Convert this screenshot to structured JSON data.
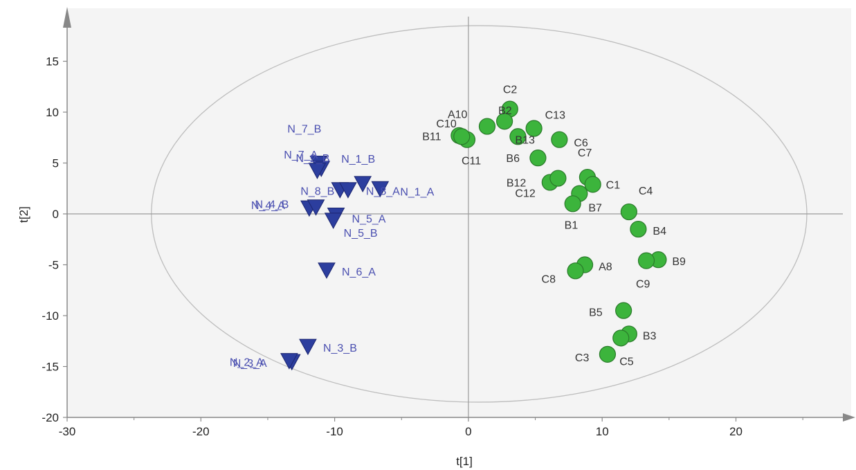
{
  "chart_data": {
    "type": "scatter",
    "title": "",
    "xlabel": "t[1]",
    "ylabel": "t[2]",
    "xlim": [
      -30,
      30
    ],
    "ylim": [
      -20,
      20
    ],
    "xticks": [
      "-30",
      "-20",
      "-10",
      "0",
      "10",
      "20"
    ],
    "yticks": [
      "-20",
      "-15",
      "-10",
      "-5",
      "0",
      "5",
      "10",
      "15"
    ],
    "grid": false,
    "legend": "none",
    "ellipse": {
      "cx": 0.8,
      "cy": 0,
      "rx": 24.5,
      "ry": 18.5
    },
    "colors": {
      "group_n": "#2c3e9e",
      "group_n_label": "#4a4fb0",
      "group_abc": "#3cb43c",
      "group_abc_label": "#333333",
      "plot_bg": "#f4f4f4",
      "ellipse": "#bdbdbd",
      "axis": "#888888"
    },
    "series": [
      {
        "marker": "triangle-down",
        "points": [
          {
            "label": "N_7_B",
            "x": -11.2,
            "y": 5.0
          },
          {
            "label": "N_7_A",
            "x": -11.0,
            "y": 4.5
          },
          {
            "label": "N_2_B",
            "x": -11.3,
            "y": 4.3
          },
          {
            "label": "N_1_B",
            "x": -7.9,
            "y": 3.0
          },
          {
            "label": "N_8_B",
            "x": -9.6,
            "y": 2.4
          },
          {
            "label": "N_8_A",
            "x": -9.0,
            "y": 2.4
          },
          {
            "label": "N_1_A",
            "x": -6.6,
            "y": 2.5
          },
          {
            "label": "N_4_A",
            "x": -11.9,
            "y": 0.6
          },
          {
            "label": "N_4_B",
            "x": -11.4,
            "y": 0.7
          },
          {
            "label": "N_5_A",
            "x": -9.9,
            "y": -0.1
          },
          {
            "label": "N_5_B",
            "x": -10.1,
            "y": -0.6
          },
          {
            "label": "N_6_A",
            "x": -10.6,
            "y": -5.5
          },
          {
            "label": "N_3_B",
            "x": -12.0,
            "y": -13.0
          },
          {
            "label": "N_3_A",
            "x": -13.2,
            "y": -14.5
          },
          {
            "label": "N_2_A",
            "x": -13.4,
            "y": -14.4
          }
        ]
      },
      {
        "marker": "circle",
        "points": [
          {
            "label": "C2",
            "x": 3.1,
            "y": 10.3
          },
          {
            "label": "B2",
            "x": 2.7,
            "y": 9.1
          },
          {
            "label": "A10",
            "x": 1.4,
            "y": 8.6
          },
          {
            "label": "C10",
            "x": -0.7,
            "y": 7.7
          },
          {
            "label": "C11",
            "x": -0.1,
            "y": 7.3
          },
          {
            "label": "B11",
            "x": -0.5,
            "y": 7.6
          },
          {
            "label": "C13",
            "x": 4.9,
            "y": 8.4
          },
          {
            "label": "B13",
            "x": 3.7,
            "y": 7.6
          },
          {
            "label": "C6",
            "x": 6.8,
            "y": 7.3
          },
          {
            "label": "B6",
            "x": 5.2,
            "y": 5.5
          },
          {
            "label": "C7",
            "x": 8.9,
            "y": 3.6
          },
          {
            "label": "C1",
            "x": 9.3,
            "y": 2.9
          },
          {
            "label": "B12",
            "x": 6.1,
            "y": 3.1
          },
          {
            "label": "C12",
            "x": 6.7,
            "y": 3.5
          },
          {
            "label": "B7",
            "x": 8.3,
            "y": 2.0
          },
          {
            "label": "B1",
            "x": 7.8,
            "y": 1.0
          },
          {
            "label": "C4",
            "x": 12.0,
            "y": 0.2
          },
          {
            "label": "B4",
            "x": 12.7,
            "y": -1.5
          },
          {
            "label": "B9",
            "x": 14.2,
            "y": -4.5
          },
          {
            "label": "C9",
            "x": 13.3,
            "y": -4.6
          },
          {
            "label": "A8",
            "x": 8.7,
            "y": -5.0
          },
          {
            "label": "C8",
            "x": 8.0,
            "y": -5.6
          },
          {
            "label": "B5",
            "x": 11.6,
            "y": -9.5
          },
          {
            "label": "B3",
            "x": 12.0,
            "y": -11.8
          },
          {
            "label": "C5",
            "x": 11.4,
            "y": -12.2
          },
          {
            "label": "C3",
            "x": 10.4,
            "y": -13.8
          }
        ]
      }
    ]
  }
}
